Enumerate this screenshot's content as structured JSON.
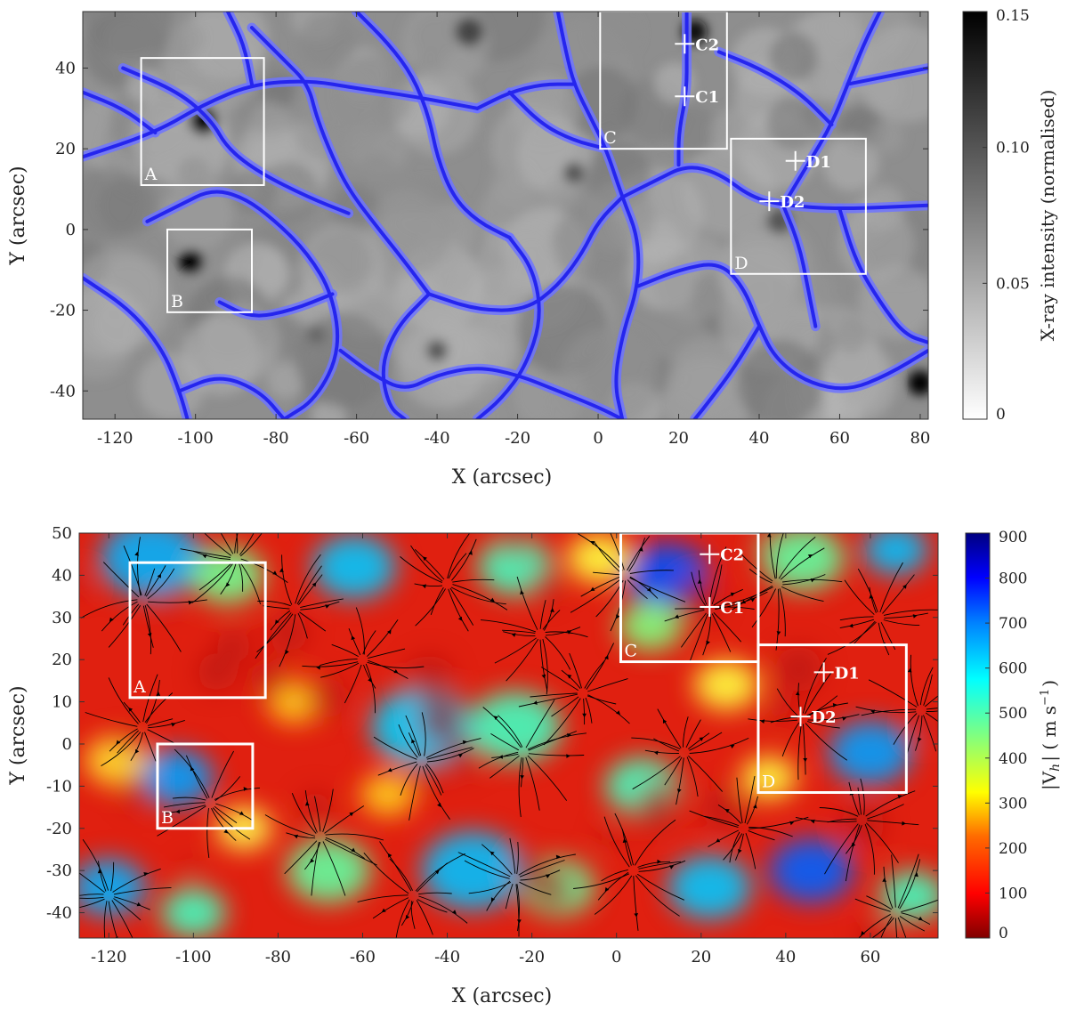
{
  "chart_data": [
    {
      "type": "heatmap",
      "title": "",
      "xlabel": "X (arcsec)",
      "ylabel": "Y (arcsec)",
      "xlim": [
        -128,
        82
      ],
      "ylim": [
        -47,
        54
      ],
      "xticks": [
        -120,
        -100,
        -80,
        -60,
        -40,
        -20,
        0,
        20,
        40,
        60,
        80
      ],
      "yticks": [
        -40,
        -20,
        0,
        20,
        40
      ],
      "colorbar": {
        "label": "X-ray intensity (normalised)",
        "range": [
          0,
          0.15
        ],
        "ticks": [
          "0",
          "0.05",
          "0.10",
          "0.15"
        ],
        "colormap": "gray-reversed"
      },
      "overlay": "network lanes (blue)",
      "lane_color": "#2525ee",
      "lane_halo_color": "#6f74ff",
      "boxes": [
        {
          "label": "A",
          "x0": -113.5,
          "x1": -83,
          "y0": 11,
          "y1": 42.5
        },
        {
          "label": "B",
          "x0": -107,
          "x1": -86,
          "y0": -20.5,
          "y1": 0
        },
        {
          "label": "C",
          "x0": 0.5,
          "x1": 32,
          "y0": 20,
          "y1": 54
        },
        {
          "label": "D",
          "x0": 33,
          "x1": 66.5,
          "y0": -11,
          "y1": 22.5
        }
      ],
      "markers": [
        {
          "label": "C2",
          "x": 21.5,
          "y": 46
        },
        {
          "label": "C1",
          "x": 21.5,
          "y": 33
        },
        {
          "label": "D1",
          "x": 49,
          "y": 17
        },
        {
          "label": "D2",
          "x": 42.5,
          "y": 7
        }
      ]
    },
    {
      "type": "heatmap",
      "title": "",
      "xlabel": "X (arcsec)",
      "ylabel": "Y (arcsec)",
      "xlim": [
        -127,
        76
      ],
      "ylim": [
        -46,
        50
      ],
      "xticks": [
        -120,
        -100,
        -80,
        -60,
        -40,
        -20,
        0,
        20,
        40,
        60
      ],
      "yticks": [
        -40,
        -30,
        -20,
        -10,
        0,
        10,
        20,
        30,
        40,
        50
      ],
      "colorbar": {
        "label": "|V",
        "label_sub": "h",
        "label_units": "| ( m s",
        "label_exp": "−1",
        "label_close": ")",
        "range": [
          0,
          900
        ],
        "ticks": [
          "0",
          "100",
          "200",
          "300",
          "400",
          "500",
          "600",
          "700",
          "800",
          "900"
        ],
        "colormap": "jet-reversed"
      },
      "overlay": "flow streamlines (black)",
      "boxes": [
        {
          "label": "A",
          "x0": -115,
          "x1": -83,
          "y0": 11,
          "y1": 43
        },
        {
          "label": "B",
          "x0": -108.5,
          "x1": -86,
          "y0": -20,
          "y1": 0
        },
        {
          "label": "C",
          "x0": 1,
          "x1": 33.5,
          "y0": 19.5,
          "y1": 50
        },
        {
          "label": "D",
          "x0": 33.5,
          "x1": 68.5,
          "y0": -11.5,
          "y1": 23.5
        }
      ],
      "markers": [
        {
          "label": "C2",
          "x": 22,
          "y": 45
        },
        {
          "label": "C1",
          "x": 22,
          "y": 32.5
        },
        {
          "label": "D1",
          "x": 49,
          "y": 17
        },
        {
          "label": "D2",
          "x": 43.5,
          "y": 6.5
        }
      ]
    }
  ]
}
